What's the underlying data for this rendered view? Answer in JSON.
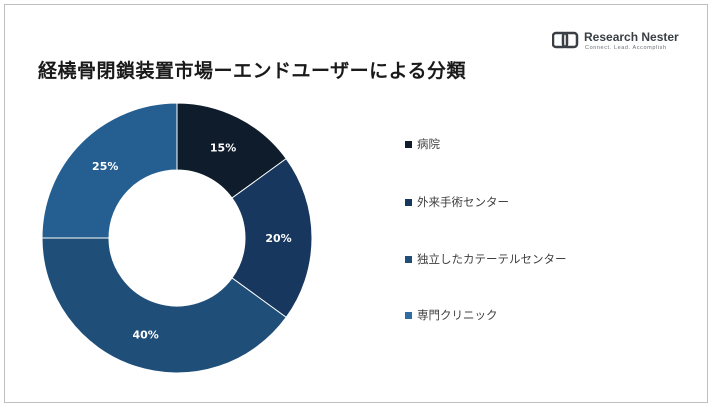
{
  "title": "経橈骨閉鎖装置市場ーエンドユーザーによる分類",
  "logo": {
    "name": "Research Nester",
    "tagline": "Connect. Lead. Accomplish"
  },
  "chart_data": {
    "type": "pie",
    "variant": "donut",
    "title": "経橈骨閉鎖装置市場ーエンドユーザーによる分類",
    "categories": [
      "病院",
      "外来手術センター",
      "独立したカテーテルセンター",
      "専門クリニック"
    ],
    "values": [
      15,
      20,
      40,
      25
    ],
    "data_labels": [
      "15%",
      "20%",
      "40%",
      "25%"
    ],
    "colors": [
      "#0e1c2b",
      "#17375e",
      "#1f4e79",
      "#255f91"
    ],
    "legend_position": "right"
  }
}
